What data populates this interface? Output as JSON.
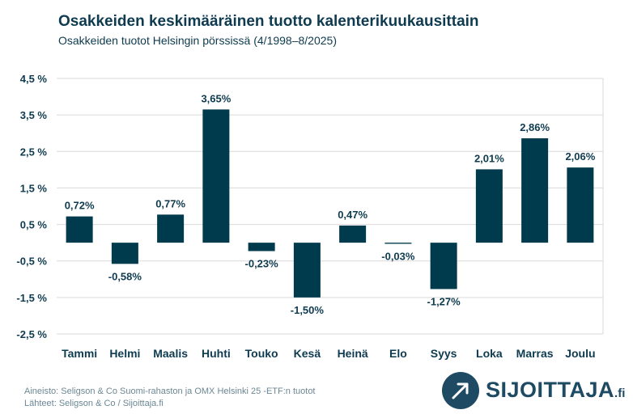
{
  "title": "Osakkeiden keskimääräinen tuotto kalenterikuukausittain",
  "subtitle": "Osakkeiden tuotot Helsingin pörssissä (4/1998–8/2025)",
  "footer": {
    "source_line": "Aineisto: Seligson & Co Suomi-rahaston ja OMX Helsinki 25 -ETF:n tuotot",
    "sources_line": "Lähteet: Seligson & Co / Sijoittaja.fi"
  },
  "logo": {
    "text": "SIJOITTAJA",
    "suffix": ".fi",
    "color": "#1f4a63"
  },
  "colors": {
    "bar": "#003a4d",
    "grid": "#d9d9d9",
    "text": "#0e3b4f"
  },
  "chart_data": {
    "type": "bar",
    "categories": [
      "Tammi",
      "Helmi",
      "Maalis",
      "Huhti",
      "Touko",
      "Kesä",
      "Heinä",
      "Elo",
      "Syys",
      "Loka",
      "Marras",
      "Joulu"
    ],
    "values": [
      0.72,
      -0.58,
      0.77,
      3.65,
      -0.23,
      -1.5,
      0.47,
      -0.03,
      -1.27,
      2.01,
      2.86,
      2.06
    ],
    "value_labels": [
      "0,72%",
      "-0,58%",
      "0,77%",
      "3,65%",
      "-0,23%",
      "-1,50%",
      "0,47%",
      "-0,03%",
      "-1,27%",
      "2,01%",
      "2,86%",
      "2,06%"
    ],
    "yticks": [
      4.5,
      3.5,
      2.5,
      1.5,
      0.5,
      -0.5,
      -1.5,
      -2.5
    ],
    "ytick_labels": [
      "4,5 %",
      "3,5 %",
      "2,5 %",
      "1,5 %",
      "0,5 %",
      "-0,5 %",
      "-1,5 %",
      "-2,5 %"
    ],
    "ylim": [
      -2.5,
      4.5
    ],
    "grid": true,
    "legend": "none"
  }
}
